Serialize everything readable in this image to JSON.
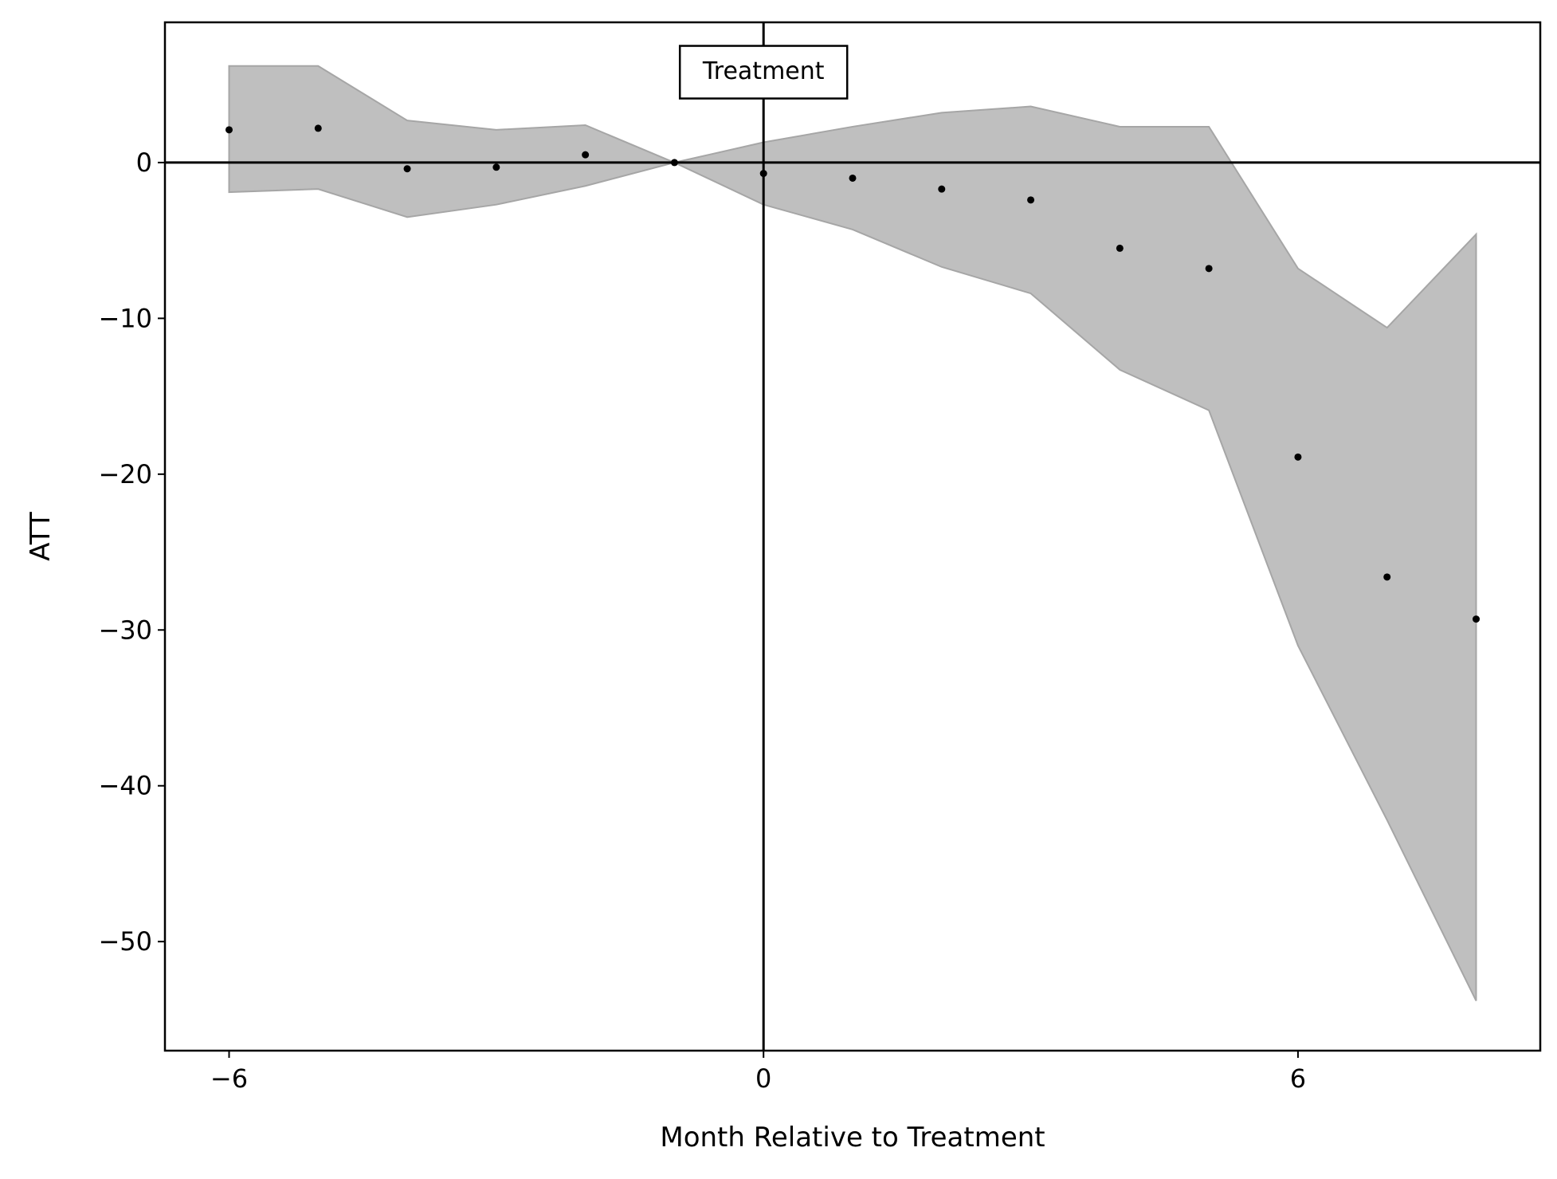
{
  "chart_data": {
    "type": "scatter",
    "title": "",
    "xlabel": "Month Relative to Treatment",
    "ylabel": "ATT",
    "xlim": [
      -6.72,
      8.72
    ],
    "ylim": [
      -57,
      9
    ],
    "xticks": [
      -6,
      0,
      6
    ],
    "yticks": [
      0,
      -10,
      -20,
      -30,
      -40,
      -50
    ],
    "tick_label_minus": "−",
    "grid": false,
    "reference_lines": {
      "horizontal_y": 0,
      "vertical_x": 0
    },
    "annotation": {
      "text": "Treatment",
      "x": 0,
      "y": 5.8
    },
    "colors": {
      "points": "#000000",
      "band_fill": "#bfbfbf",
      "band_edge": "#a6a6a6",
      "lines": "#000000"
    },
    "points": [
      {
        "x": -6,
        "y": 2.1
      },
      {
        "x": -5,
        "y": 2.2
      },
      {
        "x": -4,
        "y": -0.4
      },
      {
        "x": -3,
        "y": -0.3
      },
      {
        "x": -2,
        "y": 0.5
      },
      {
        "x": -1,
        "y": 0
      },
      {
        "x": 0,
        "y": -0.7
      },
      {
        "x": 1,
        "y": -1.0
      },
      {
        "x": 2,
        "y": -1.7
      },
      {
        "x": 3,
        "y": -2.4
      },
      {
        "x": 4,
        "y": -5.5
      },
      {
        "x": 5,
        "y": -6.8
      },
      {
        "x": 6,
        "y": -18.9
      },
      {
        "x": 7,
        "y": -26.6
      },
      {
        "x": 8,
        "y": -29.3
      }
    ],
    "confidence_band": {
      "x": [
        -6,
        -5,
        -4,
        -3,
        -2,
        -1,
        0,
        1,
        2,
        3,
        4,
        5,
        6,
        7,
        8
      ],
      "upper": [
        6.2,
        6.2,
        2.7,
        2.1,
        2.4,
        0,
        1.3,
        2.3,
        3.2,
        3.6,
        2.3,
        2.3,
        -6.8,
        -10.6,
        -4.6
      ],
      "lower": [
        -1.9,
        -1.7,
        -3.5,
        -2.7,
        -1.5,
        0,
        -2.7,
        -4.3,
        -6.7,
        -8.4,
        -13.3,
        -15.9,
        -31.0,
        -42.2,
        -53.8
      ]
    }
  }
}
